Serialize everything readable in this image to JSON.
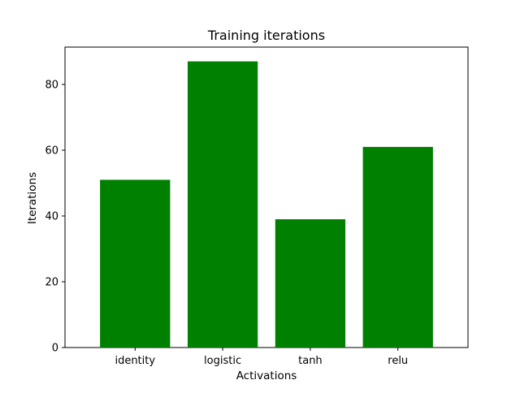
{
  "chart_data": {
    "type": "bar",
    "title": "Training iterations",
    "xlabel": "Activations",
    "ylabel": "Iterations",
    "categories": [
      "identity",
      "logistic",
      "tanh",
      "relu"
    ],
    "values": [
      51,
      87,
      39,
      61
    ],
    "ylim": [
      0,
      91.35
    ],
    "yticks": [
      0,
      20,
      40,
      60,
      80
    ],
    "bar_color": "#008000",
    "grid": false,
    "legend": "none"
  }
}
